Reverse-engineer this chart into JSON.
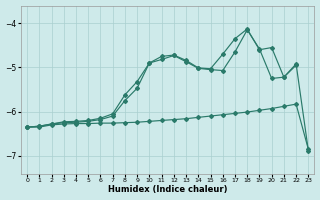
{
  "xlabel": "Humidex (Indice chaleur)",
  "bg_color": "#ceeaea",
  "line_color": "#2a7a6a",
  "grid_color": "#aacfcf",
  "xlim": [
    -0.5,
    23.5
  ],
  "ylim": [
    -7.4,
    -3.6
  ],
  "yticks": [
    -7,
    -6,
    -5,
    -4
  ],
  "xticks": [
    0,
    1,
    2,
    3,
    4,
    5,
    6,
    7,
    8,
    9,
    10,
    11,
    12,
    13,
    14,
    15,
    16,
    17,
    18,
    19,
    20,
    21,
    22,
    23
  ],
  "line1_x": [
    0,
    1,
    2,
    3,
    4,
    5,
    6,
    7,
    8,
    9,
    10,
    11,
    12,
    13,
    14,
    15,
    16,
    17,
    18,
    19,
    20,
    21,
    22,
    23
  ],
  "line1_y": [
    -6.35,
    -6.35,
    -6.3,
    -6.28,
    -6.27,
    -6.27,
    -6.26,
    -6.26,
    -6.25,
    -6.24,
    -6.22,
    -6.2,
    -6.18,
    -6.16,
    -6.13,
    -6.1,
    -6.07,
    -6.04,
    -6.01,
    -5.97,
    -5.93,
    -5.88,
    -5.83,
    -6.85
  ],
  "line2_x": [
    0,
    1,
    2,
    3,
    4,
    5,
    6,
    7,
    8,
    9,
    10,
    11,
    12,
    13,
    14,
    15,
    16,
    17,
    18,
    19,
    20,
    21,
    22
  ],
  "line2_y": [
    -6.35,
    -6.33,
    -6.28,
    -6.25,
    -6.24,
    -6.22,
    -6.18,
    -6.1,
    -5.75,
    -5.47,
    -4.9,
    -4.82,
    -4.73,
    -4.87,
    -5.02,
    -5.05,
    -5.07,
    -4.65,
    -4.15,
    -4.58,
    -5.25,
    -5.22,
    -4.95
  ],
  "line3_x": [
    0,
    1,
    2,
    3,
    4,
    5,
    6,
    7,
    8,
    9,
    10,
    11,
    12,
    13,
    14,
    15,
    16,
    17,
    18,
    19,
    20,
    21,
    22,
    23
  ],
  "line3_y": [
    -6.35,
    -6.33,
    -6.28,
    -6.23,
    -6.22,
    -6.2,
    -6.15,
    -6.05,
    -5.62,
    -5.32,
    -4.9,
    -4.75,
    -4.72,
    -4.84,
    -5.01,
    -5.03,
    -4.7,
    -4.35,
    -4.13,
    -4.6,
    -4.55,
    -5.22,
    -4.92,
    -6.88
  ]
}
